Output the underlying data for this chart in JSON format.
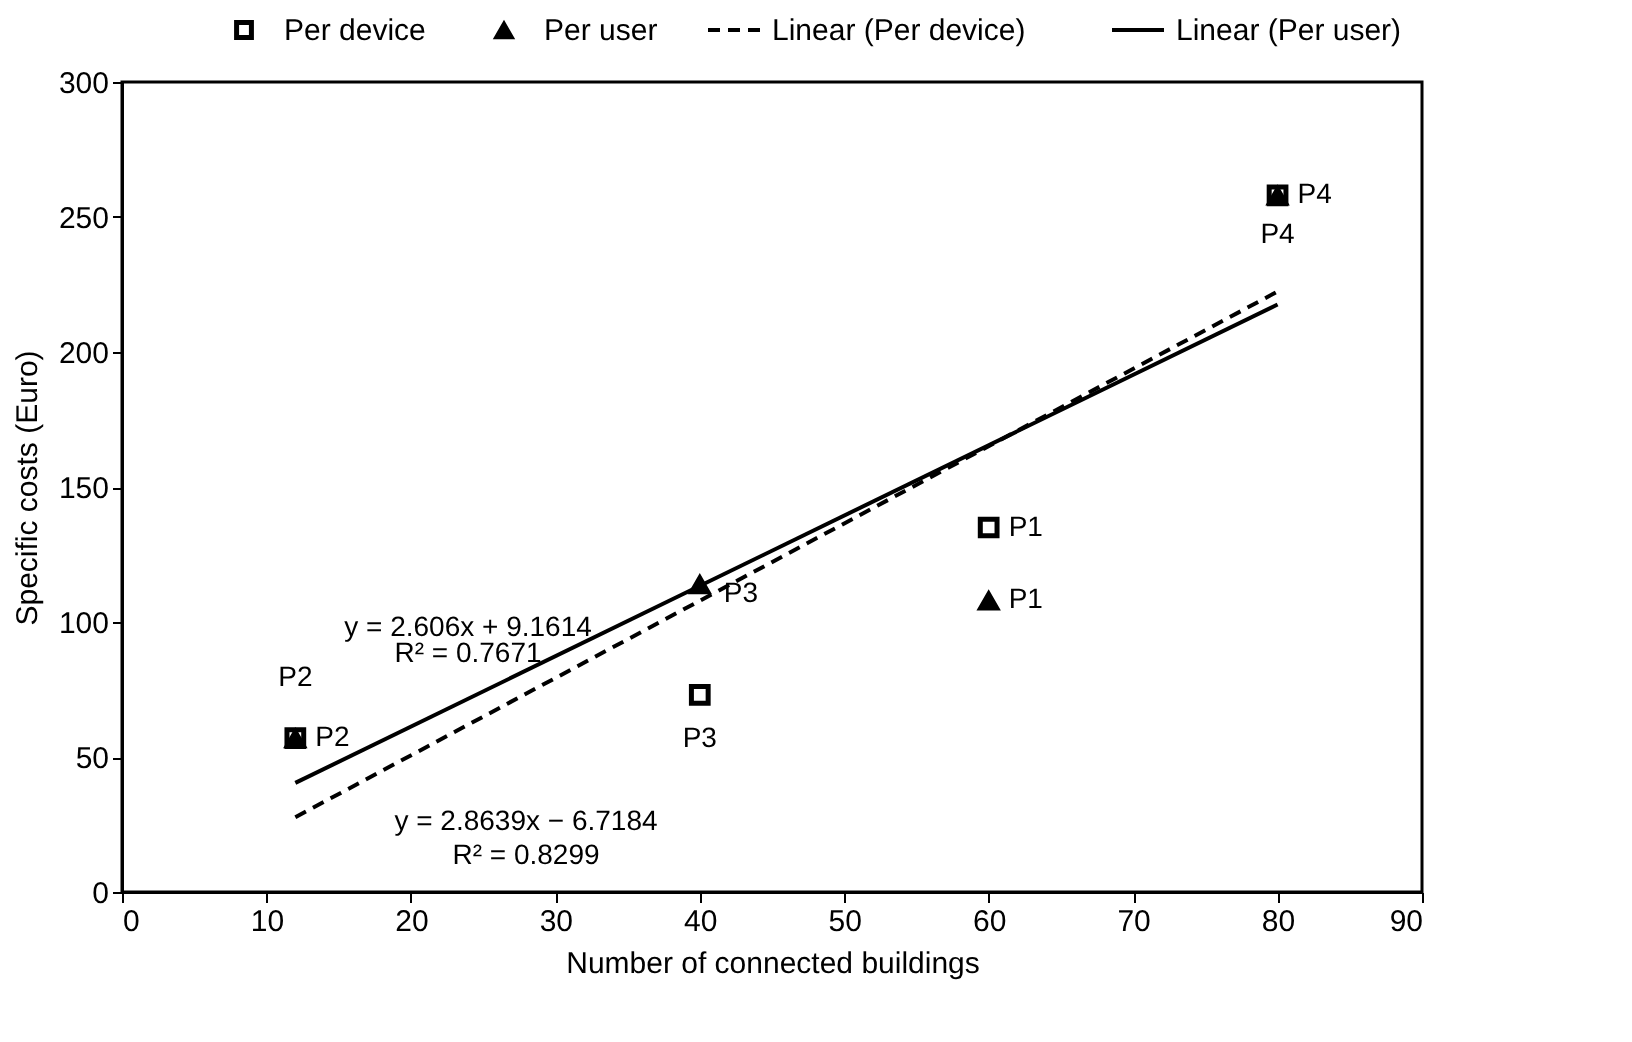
{
  "chart_data": {
    "type": "scatter",
    "xlabel": "Number of connected buildings",
    "ylabel": "Specific costs (Euro)",
    "xlim": [
      0,
      90
    ],
    "xticks": [
      0,
      10,
      20,
      30,
      40,
      50,
      60,
      70,
      80,
      90
    ],
    "ylim": [
      0,
      300
    ],
    "yticks": [
      0,
      50,
      100,
      150,
      200,
      250,
      300
    ],
    "grid": false,
    "legend": "top",
    "series": [
      {
        "name": "Per device",
        "marker": "square",
        "color": "#000000",
        "x": [
          60,
          12,
          40,
          80
        ],
        "values": [
          135,
          57,
          73,
          258
        ]
      },
      {
        "name": "Per user",
        "marker": "triangle",
        "color": "#000000",
        "x": [
          60,
          12,
          40,
          80
        ],
        "values": [
          108,
          57,
          114,
          258
        ]
      },
      {
        "name": "Linear (Per device)",
        "type": "line",
        "line_style": "dashed",
        "color": "#000000",
        "x": [
          12,
          80
        ],
        "values": [
          27.7,
          222.4
        ]
      },
      {
        "name": "Linear (Per user)",
        "type": "line",
        "line_style": "solid",
        "color": "#000000",
        "x": [
          12,
          80
        ],
        "values": [
          40.4,
          217.6
        ]
      }
    ],
    "annotations": [
      {
        "text": "P1",
        "x": 60,
        "y": 135
      },
      {
        "text": "P1",
        "x": 60,
        "y": 108
      },
      {
        "text": "P2",
        "x": 12,
        "y": 57
      },
      {
        "text": "P2",
        "x": 12,
        "y": 57
      },
      {
        "text": "P3",
        "x": 40,
        "y": 114
      },
      {
        "text": "P3",
        "x": 40,
        "y": 73
      },
      {
        "text": "P4",
        "x": 80,
        "y": 258
      },
      {
        "text": "P4",
        "x": 80,
        "y": 258
      },
      "y = 2.606x + 9.1614",
      "R² = 0.7671",
      "y = 2.8639x − 6.7184",
      "R² = 0.8299"
    ]
  }
}
